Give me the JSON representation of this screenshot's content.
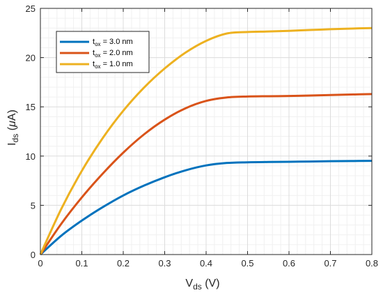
{
  "chart_data": {
    "type": "line",
    "title": "",
    "xlabel": {
      "main": "V",
      "sub": "ds",
      "unit": " (V)"
    },
    "ylabel": {
      "main": "I",
      "sub": "ds",
      "unit_pre": " (",
      "mu": "μ",
      "unit_post": "A)"
    },
    "xlim": [
      0,
      0.8
    ],
    "ylim": [
      0,
      25
    ],
    "xticks": [
      0,
      0.1,
      0.2,
      0.3,
      0.4,
      0.5,
      0.6,
      0.7,
      0.8
    ],
    "xtick_labels": [
      "0",
      "0.1",
      "0.2",
      "0.3",
      "0.4",
      "0.5",
      "0.6",
      "0.7",
      "0.8"
    ],
    "yticks": [
      0,
      5,
      10,
      15,
      20,
      25
    ],
    "ytick_labels": [
      "0",
      "5",
      "10",
      "15",
      "20",
      "25"
    ],
    "grid": true,
    "minor_grid": true,
    "legend_position": "top-left",
    "x": [
      0,
      0.05,
      0.1,
      0.15,
      0.2,
      0.25,
      0.3,
      0.35,
      0.4,
      0.45,
      0.5,
      0.55,
      0.6,
      0.65,
      0.7,
      0.75,
      0.8
    ],
    "series": [
      {
        "legend": {
          "main": "t",
          "sub": "ox",
          "text": " = 3.0 nm"
        },
        "color": "#0072BD",
        "values": [
          0,
          1.9,
          3.45,
          4.8,
          6.0,
          7.0,
          7.85,
          8.55,
          9.05,
          9.3,
          9.37,
          9.4,
          9.42,
          9.45,
          9.48,
          9.5,
          9.52
        ]
      },
      {
        "legend": {
          "main": "t",
          "sub": "ox",
          "text": " = 2.0 nm"
        },
        "color": "#D95319",
        "values": [
          0,
          3.1,
          5.8,
          8.2,
          10.35,
          12.2,
          13.7,
          14.85,
          15.6,
          15.95,
          16.05,
          16.08,
          16.1,
          16.15,
          16.2,
          16.25,
          16.3
        ]
      },
      {
        "legend": {
          "main": "t",
          "sub": "ox",
          "text": " = 1.0 nm"
        },
        "color": "#EDB120",
        "values": [
          0,
          4.6,
          8.5,
          11.8,
          14.6,
          16.95,
          18.9,
          20.5,
          21.7,
          22.45,
          22.6,
          22.65,
          22.72,
          22.8,
          22.88,
          22.95,
          23.0
        ]
      }
    ]
  }
}
